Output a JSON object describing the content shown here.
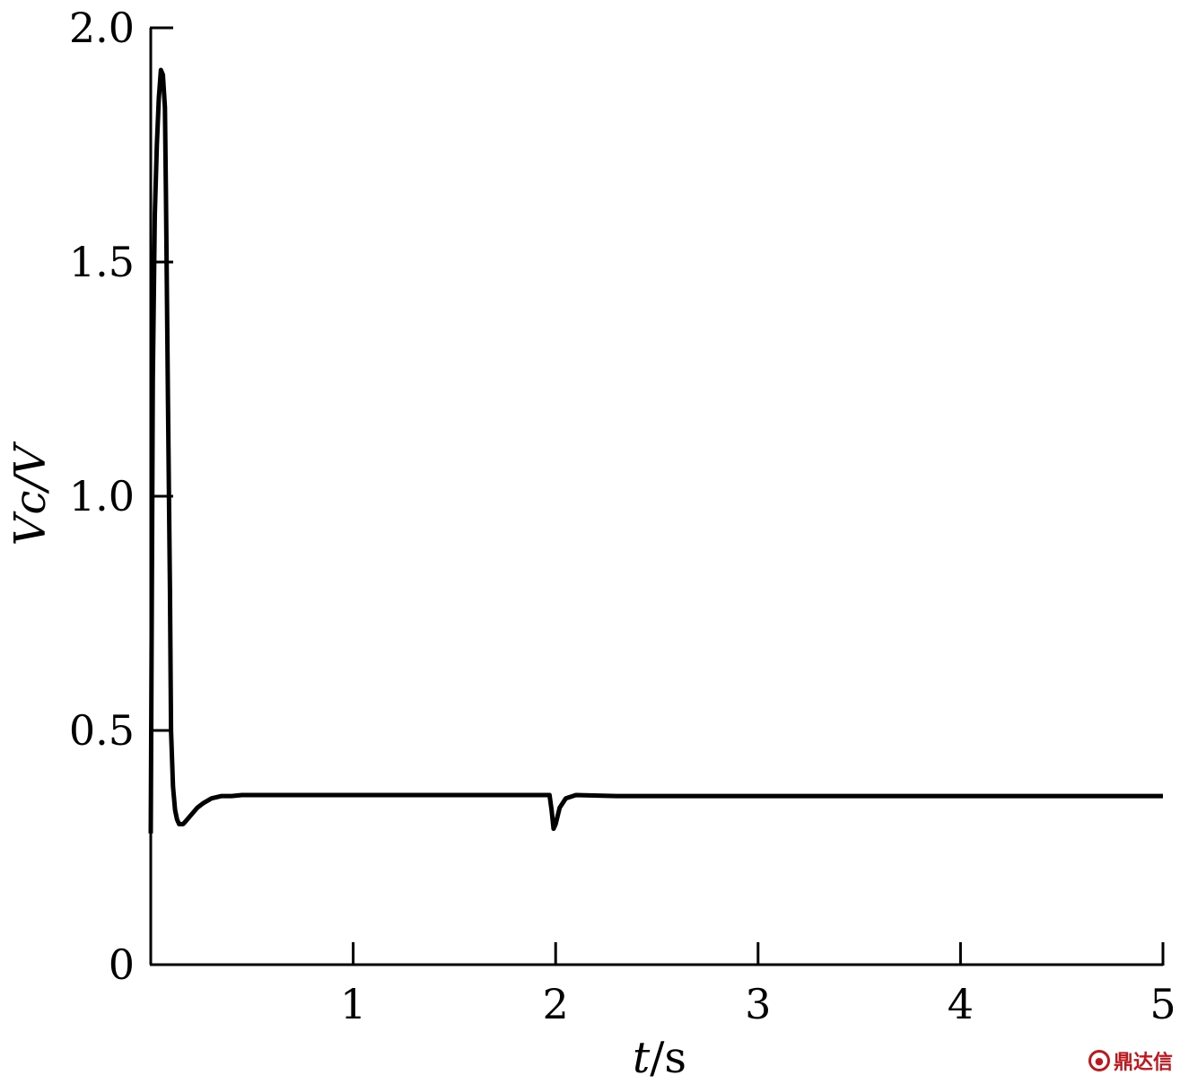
{
  "chart_data": {
    "type": "line",
    "title": "",
    "xlabel_var": "t",
    "xlabel_unit": "/s",
    "ylabel": "Vc/V",
    "xlim": [
      0,
      5
    ],
    "ylim": [
      0,
      2.0
    ],
    "x_ticks": [
      1,
      2,
      3,
      4,
      5
    ],
    "x_tick_labels": [
      "1",
      "2",
      "3",
      "4",
      "5"
    ],
    "y_ticks": [
      0,
      0.5,
      1.0,
      1.5,
      2.0
    ],
    "y_tick_labels": [
      "0",
      "0.5",
      "1.0",
      "1.5",
      "2.0"
    ],
    "grid": false,
    "legend": "none",
    "series": [
      {
        "color": "#000000",
        "x": [
          0,
          0.01,
          0.02,
          0.03,
          0.04,
          0.05,
          0.06,
          0.07,
          0.075,
          0.085,
          0.095,
          0.1,
          0.11,
          0.12,
          0.13,
          0.14,
          0.15,
          0.16,
          0.17,
          0.18,
          0.2,
          0.23,
          0.26,
          0.3,
          0.35,
          0.4,
          0.45,
          0.5,
          0.6,
          0.8,
          1.0,
          1.5,
          1.97,
          1.98,
          1.99,
          2.0,
          2.02,
          2.05,
          2.1,
          2.3,
          3.0,
          4.0,
          5.0
        ],
        "y": [
          0.28,
          1.25,
          1.6,
          1.75,
          1.85,
          1.91,
          1.9,
          1.83,
          1.65,
          1.2,
          0.8,
          0.5,
          0.38,
          0.33,
          0.31,
          0.3,
          0.3,
          0.3,
          0.305,
          0.31,
          0.32,
          0.335,
          0.345,
          0.355,
          0.36,
          0.36,
          0.362,
          0.362,
          0.362,
          0.362,
          0.362,
          0.362,
          0.362,
          0.33,
          0.29,
          0.3,
          0.335,
          0.355,
          0.362,
          0.36,
          0.36,
          0.36,
          0.36
        ]
      }
    ]
  },
  "watermark_text": "鼎达信",
  "watermark_icon": "seal-icon"
}
